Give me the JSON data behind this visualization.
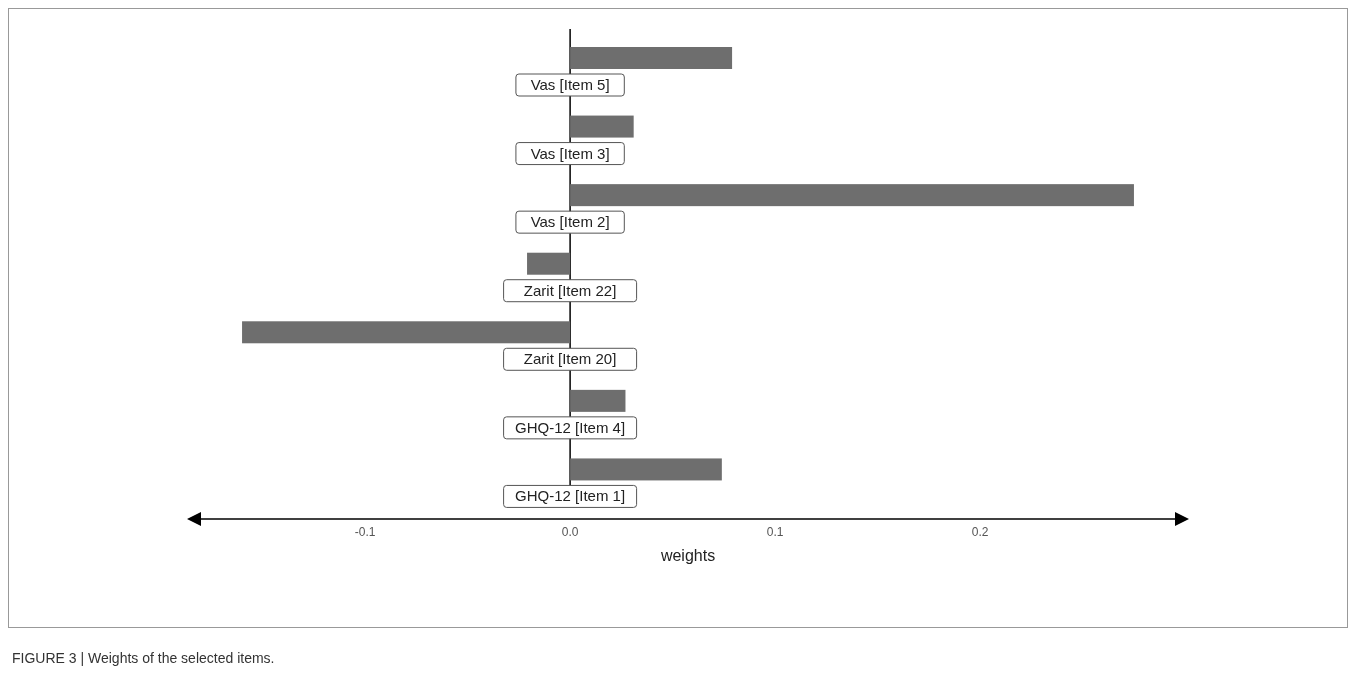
{
  "chart_data": {
    "type": "bar",
    "orientation": "horizontal",
    "xlabel": "weights",
    "categories": [
      "Vas [Item 5]",
      "Vas [Item 3]",
      "Vas [Item 2]",
      "Zarit [Item 22]",
      "Zarit [Item 20]",
      "GHQ-12 [Item 4]",
      "GHQ-12 [Item 1]"
    ],
    "values": [
      0.079,
      0.031,
      0.275,
      -0.021,
      -0.16,
      0.027,
      0.074
    ],
    "color": "#6e6e6e",
    "xlim": [
      -0.181,
      0.296
    ],
    "xticks": [
      -0.1,
      {
        "value": 0,
        "label": "0.0"
      },
      0.1,
      0.2
    ],
    "grid": false,
    "annotations": [
      "FIGURE 3 | Weights of the selected items."
    ]
  }
}
